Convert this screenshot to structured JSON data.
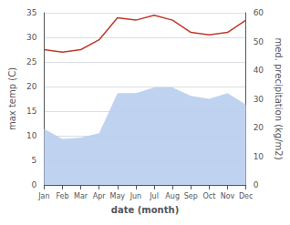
{
  "chart_data": {
    "type": "line",
    "categories": [
      "Jan",
      "Feb",
      "Mar",
      "Apr",
      "May",
      "Jun",
      "Jul",
      "Aug",
      "Sep",
      "Oct",
      "Nov",
      "Dec"
    ],
    "series": [
      {
        "type": "area",
        "color": "#b8cef0",
        "axis": "y2",
        "values": [
          19.5,
          16.0,
          16.5,
          18.0,
          32.0,
          32.0,
          34.0,
          34.0,
          31.0,
          30.0,
          32.0,
          28.0
        ]
      },
      {
        "type": "line",
        "color": "#c0392b",
        "values": [
          27.5,
          27.0,
          27.5,
          29.5,
          34.0,
          33.5,
          34.5,
          33.5,
          31.0,
          30.5,
          31.0,
          33.5
        ]
      }
    ],
    "xlabel": "date (month)",
    "ylabel": "max temp (C)",
    "y2label": "med. precipitation (kg/m2)",
    "ylim": [
      0,
      35
    ],
    "yticks": [
      0,
      5,
      10,
      15,
      20,
      25,
      30,
      35
    ],
    "y2lim": [
      0,
      60
    ],
    "y2ticks": [
      0,
      10,
      20,
      30,
      40,
      50,
      60
    ],
    "grid": true
  }
}
